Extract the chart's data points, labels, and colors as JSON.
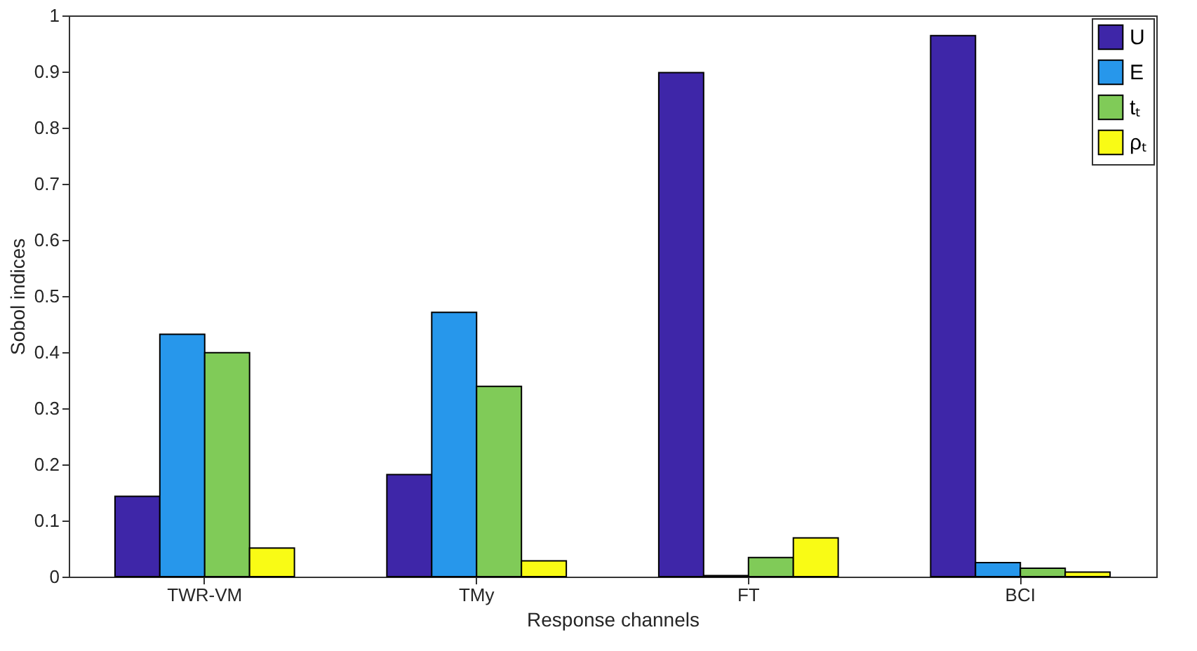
{
  "chart_data": {
    "type": "bar",
    "xlabel": "Response channels",
    "ylabel": "Sobol indices",
    "categories": [
      "TWR-VM",
      "TMy",
      "FT",
      "BCI"
    ],
    "series": [
      {
        "name": "U",
        "color": "#3e26a8",
        "values": [
          0.143,
          0.182,
          0.898,
          0.964
        ]
      },
      {
        "name": "E",
        "color": "#2797eb",
        "values": [
          0.432,
          0.471,
          0.002,
          0.025
        ]
      },
      {
        "name": "tₜ",
        "color": "#80cb58",
        "values": [
          0.399,
          0.339,
          0.034,
          0.015
        ]
      },
      {
        "name": "ρₜ",
        "color": "#f9fb15",
        "values": [
          0.051,
          0.028,
          0.069,
          0.008
        ]
      }
    ],
    "ylim": [
      0,
      1
    ],
    "yticks": [
      0,
      0.1,
      0.2,
      0.3,
      0.4,
      0.5,
      0.6,
      0.7,
      0.8,
      0.9,
      1
    ],
    "grid": false,
    "legend": "top right"
  }
}
